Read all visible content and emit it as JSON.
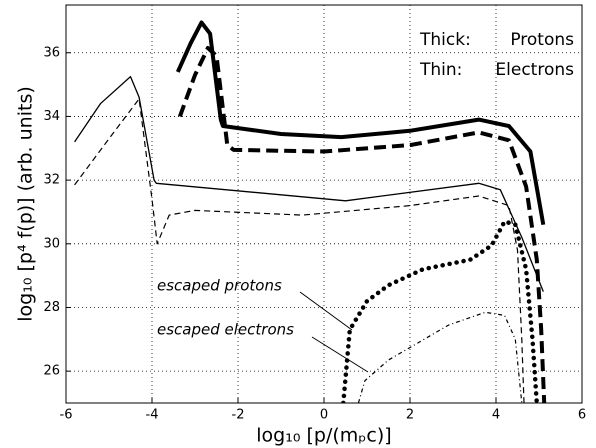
{
  "chart_data": {
    "type": "line",
    "xlabel": "log₁₀ [p/(mₚc)]",
    "ylabel": "log₁₀ [p⁴ f(p)] (arb. units)",
    "annotations": [
      "Thick:",
      "Protons",
      "Thin:",
      "Electrons",
      "escaped protons",
      "escaped electrons"
    ],
    "xlim": [
      -6,
      6
    ],
    "xticks": [
      -6,
      -4,
      -2,
      0,
      2,
      4,
      6
    ],
    "ylim": [
      25,
      37.5
    ],
    "yticks": [
      26,
      28,
      30,
      32,
      34,
      36
    ],
    "grid": true,
    "series": [
      {
        "color": "#000000",
        "weight": "thick",
        "style": "solid",
        "x": [
          -3.4,
          -3.1,
          -2.85,
          -2.65,
          -2.4,
          -2.35,
          -1,
          0.4,
          2,
          3.6,
          4.3,
          4.8,
          5.1
        ],
        "values": [
          35.4,
          36.3,
          36.95,
          36.6,
          33.9,
          33.7,
          33.45,
          33.35,
          33.55,
          33.9,
          33.7,
          32.9,
          30.6
        ]
      },
      {
        "color": "#000000",
        "weight": "thick",
        "style": "dashed",
        "x": [
          -3.35,
          -3.0,
          -2.7,
          -2.5,
          -2.25,
          -2.1,
          0,
          2,
          3.6,
          4.3,
          4.7,
          4.95,
          5.05,
          5.12
        ],
        "values": [
          34.0,
          35.3,
          36.15,
          35.9,
          33.1,
          32.95,
          32.9,
          33.1,
          33.5,
          33.25,
          31.8,
          29.5,
          27.3,
          25
        ]
      },
      {
        "color": "#000000",
        "weight": "thin",
        "style": "solid",
        "x": [
          -5.8,
          -5.2,
          -4.5,
          -4.3,
          -3.95,
          -3.9,
          0.5,
          3.6,
          4.1,
          4.6,
          5.1
        ],
        "values": [
          33.2,
          34.4,
          35.25,
          34.6,
          32.0,
          31.9,
          31.35,
          31.9,
          31.7,
          30.2,
          28.5
        ]
      },
      {
        "color": "#000000",
        "weight": "thin",
        "style": "dashed",
        "x": [
          -5.8,
          -5.0,
          -4.3,
          -4.0,
          -3.88,
          -3.6,
          -3,
          -0.5,
          2,
          3.6,
          4.3,
          4.5,
          4.6,
          4.65
        ],
        "values": [
          31.85,
          33.3,
          34.55,
          31.4,
          30.0,
          30.9,
          31.05,
          30.9,
          31.2,
          31.5,
          31.2,
          29.8,
          27,
          25
        ]
      },
      {
        "color": "#000000",
        "weight": "thick",
        "style": "dotted",
        "x": [
          0.45,
          0.6,
          1.0,
          1.5,
          2.3,
          3.4,
          3.9,
          4.2,
          4.45,
          4.7,
          4.85,
          4.95
        ],
        "values": [
          25,
          27.3,
          28.2,
          28.7,
          29.2,
          29.5,
          29.95,
          30.7,
          30.6,
          29.2,
          27,
          25
        ]
      },
      {
        "color": "#000000",
        "weight": "thin",
        "style": "dashdot",
        "x": [
          0.8,
          0.95,
          1.5,
          2.9,
          3.75,
          4.2,
          4.45,
          4.6
        ],
        "values": [
          25,
          25.7,
          26.35,
          27.45,
          27.85,
          27.75,
          27,
          25
        ]
      }
    ]
  }
}
